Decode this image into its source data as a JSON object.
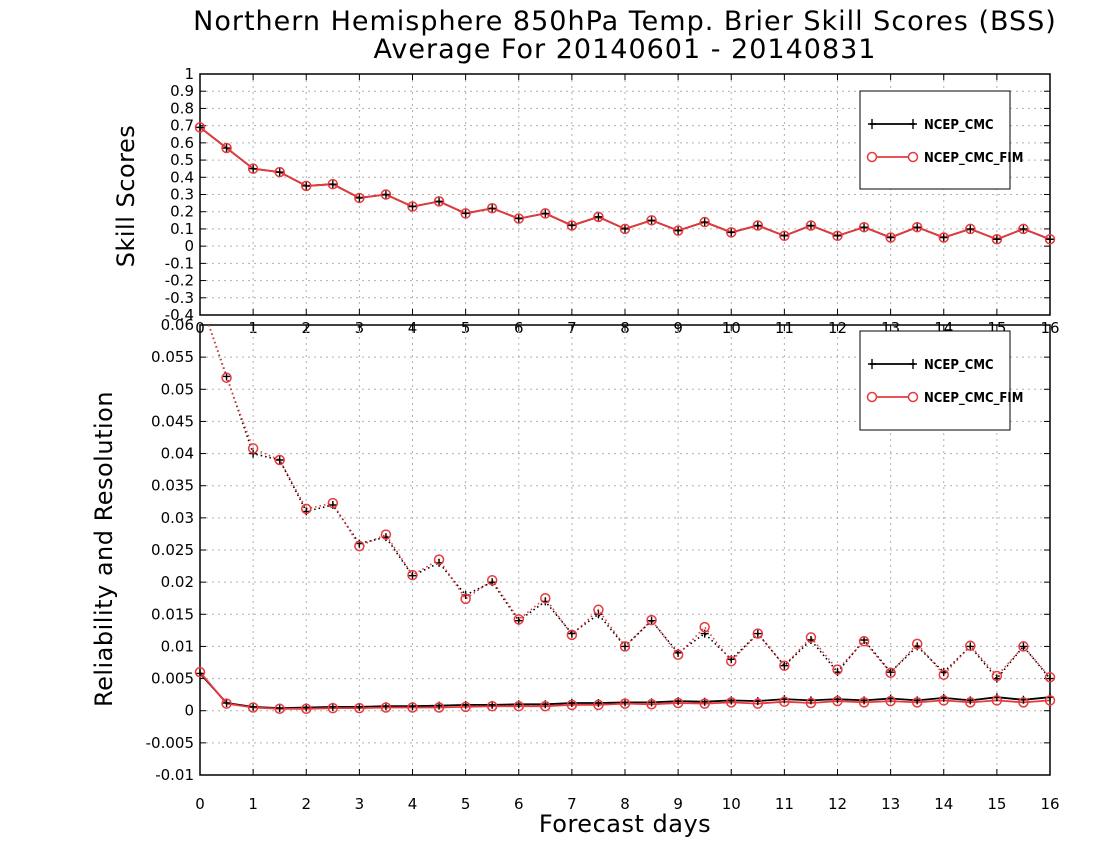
{
  "title": "Northern Hemisphere 850hPa Temp. Brier Skill Scores (BSS)",
  "subtitle": "Average For 20140601 - 20140831",
  "xlabel": "Forecast days",
  "colors": {
    "ncep_cmc": "#000000",
    "ncep_cmc_fim": "#e8393c",
    "grid": "#b0b0b0",
    "background": "#ffffff"
  },
  "chart_data": [
    {
      "type": "line",
      "panel": "top",
      "ylabel": "Skill Scores",
      "xlim": [
        0,
        16
      ],
      "ylim": [
        -0.4,
        1
      ],
      "grid": true,
      "legend_position": "top-right",
      "x_ticks": [
        "0",
        "1",
        "2",
        "3",
        "4",
        "5",
        "6",
        "7",
        "8",
        "9",
        "10",
        "11",
        "12",
        "13",
        "14",
        "15",
        "16"
      ],
      "y_ticks": [
        "-0.4",
        "-0.3",
        "-0.2",
        "-0.1",
        "0",
        "0.1",
        "0.2",
        "0.3",
        "0.4",
        "0.5",
        "0.6",
        "0.7",
        "0.8",
        "0.9",
        "1"
      ],
      "x": [
        0,
        0.5,
        1,
        1.5,
        2,
        2.5,
        3,
        3.5,
        4,
        4.5,
        5,
        5.5,
        6,
        6.5,
        7,
        7.5,
        8,
        8.5,
        9,
        9.5,
        10,
        10.5,
        11,
        11.5,
        12,
        12.5,
        13,
        13.5,
        14,
        14.5,
        15,
        15.5,
        16
      ],
      "series": [
        {
          "name": "NCEP_CMC",
          "color": "#000000",
          "marker": "plus",
          "line": "solid",
          "values": [
            0.69,
            0.57,
            0.45,
            0.43,
            0.35,
            0.36,
            0.28,
            0.3,
            0.23,
            0.26,
            0.19,
            0.22,
            0.16,
            0.19,
            0.12,
            0.17,
            0.1,
            0.15,
            0.09,
            0.14,
            0.08,
            0.12,
            0.06,
            0.12,
            0.06,
            0.11,
            0.05,
            0.11,
            0.05,
            0.1,
            0.04,
            0.1,
            0.04
          ]
        },
        {
          "name": "NCEP_CMC_FIM",
          "color": "#e8393c",
          "marker": "circle",
          "line": "solid",
          "values": [
            0.69,
            0.57,
            0.45,
            0.43,
            0.35,
            0.36,
            0.28,
            0.3,
            0.23,
            0.26,
            0.19,
            0.22,
            0.16,
            0.19,
            0.12,
            0.17,
            0.1,
            0.15,
            0.09,
            0.14,
            0.08,
            0.12,
            0.06,
            0.12,
            0.06,
            0.11,
            0.05,
            0.11,
            0.05,
            0.1,
            0.04,
            0.1,
            0.04
          ]
        }
      ]
    },
    {
      "type": "line",
      "panel": "bottom",
      "ylabel": "Reliability and Resolution",
      "xlim": [
        0,
        16
      ],
      "ylim": [
        -0.01,
        0.06
      ],
      "grid": true,
      "legend_position": "top-right",
      "x_ticks": [
        "0",
        "1",
        "2",
        "3",
        "4",
        "5",
        "6",
        "7",
        "8",
        "9",
        "10",
        "11",
        "12",
        "13",
        "14",
        "15",
        "16"
      ],
      "y_ticks": [
        "-0.01",
        "-0.005",
        "0",
        "0.005",
        "0.01",
        "0.015",
        "0.02",
        "0.025",
        "0.03",
        "0.035",
        "0.04",
        "0.045",
        "0.05",
        "0.055",
        "0.06"
      ],
      "x": [
        0,
        0.5,
        1,
        1.5,
        2,
        2.5,
        3,
        3.5,
        4,
        4.5,
        5,
        5.5,
        6,
        6.5,
        7,
        7.5,
        8,
        8.5,
        9,
        9.5,
        10,
        10.5,
        11,
        11.5,
        12,
        12.5,
        13,
        13.5,
        14,
        14.5,
        15,
        15.5,
        16
      ],
      "series": [
        {
          "name": "NCEP_CMC",
          "color": "#000000",
          "marker": "plus",
          "line": "solid",
          "role": "reliability",
          "values": [
            0.0058,
            0.0012,
            0.0006,
            0.0004,
            0.0005,
            0.0006,
            0.0006,
            0.0007,
            0.0007,
            0.0008,
            0.0009,
            0.0009,
            0.001,
            0.001,
            0.0012,
            0.0012,
            0.0013,
            0.0013,
            0.0015,
            0.0014,
            0.0016,
            0.0015,
            0.0018,
            0.0016,
            0.0018,
            0.0016,
            0.0019,
            0.0016,
            0.002,
            0.0016,
            0.0021,
            0.0017,
            0.0021
          ]
        },
        {
          "name": "NCEP_CMC",
          "color": "#000000",
          "marker": "plus",
          "line": "dotted",
          "role": "resolution",
          "values": [
            0.064,
            0.052,
            0.04,
            0.039,
            0.031,
            0.032,
            0.026,
            0.027,
            0.021,
            0.023,
            0.018,
            0.02,
            0.014,
            0.017,
            0.012,
            0.015,
            0.01,
            0.014,
            0.009,
            0.012,
            0.008,
            0.012,
            0.007,
            0.011,
            0.006,
            0.011,
            0.006,
            0.01,
            0.006,
            0.01,
            0.005,
            0.01,
            0.005
          ]
        },
        {
          "name": "NCEP_CMC_FIM",
          "color": "#e8393c",
          "marker": "circle",
          "line": "solid",
          "role": "reliability",
          "values": [
            0.006,
            0.0011,
            0.0005,
            0.0003,
            0.0003,
            0.0004,
            0.0004,
            0.0005,
            0.0005,
            0.0005,
            0.0006,
            0.0007,
            0.0007,
            0.0007,
            0.0009,
            0.0009,
            0.0011,
            0.001,
            0.0012,
            0.0011,
            0.0013,
            0.0011,
            0.0014,
            0.0012,
            0.0015,
            0.0013,
            0.0015,
            0.0013,
            0.0016,
            0.0013,
            0.0016,
            0.0013,
            0.0016
          ]
        },
        {
          "name": "NCEP_CMC_FIM",
          "color": "#e8393c",
          "marker": "circle",
          "line": "dotted",
          "role": "resolution",
          "values": [
            0.064,
            0.0518,
            0.0408,
            0.039,
            0.0314,
            0.0323,
            0.0256,
            0.0274,
            0.0211,
            0.0235,
            0.0174,
            0.0203,
            0.0142,
            0.0175,
            0.0118,
            0.0157,
            0.01,
            0.0141,
            0.0087,
            0.013,
            0.0077,
            0.012,
            0.007,
            0.0114,
            0.0064,
            0.0108,
            0.0059,
            0.0104,
            0.0056,
            0.0101,
            0.0054,
            0.01,
            0.0052
          ]
        }
      ]
    }
  ]
}
